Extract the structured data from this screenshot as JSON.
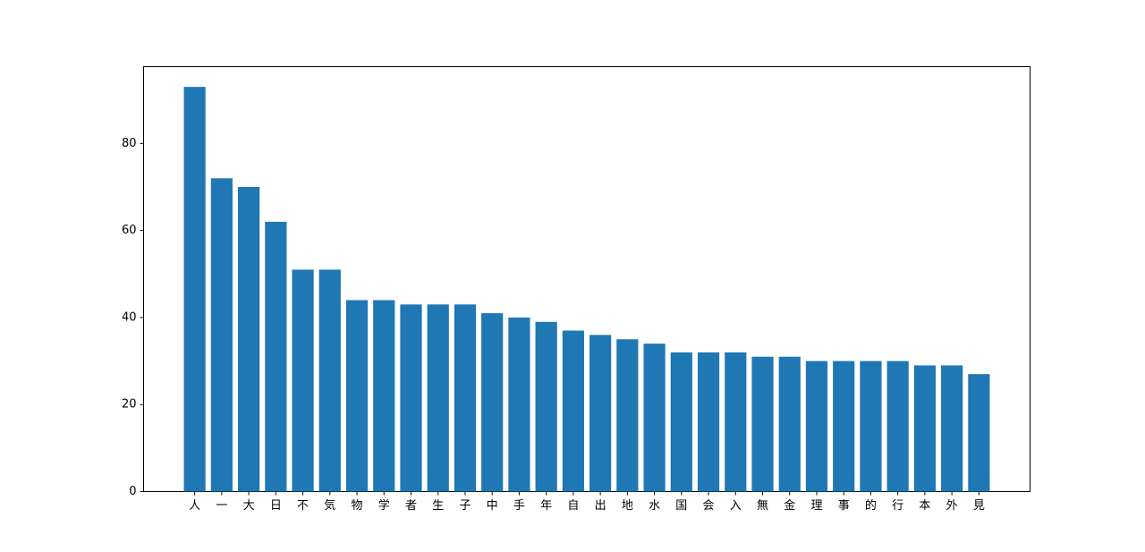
{
  "chart_data": {
    "type": "bar",
    "categories": [
      "人",
      "一",
      "大",
      "日",
      "不",
      "気",
      "物",
      "学",
      "者",
      "生",
      "子",
      "中",
      "手",
      "年",
      "自",
      "出",
      "地",
      "水",
      "国",
      "会",
      "入",
      "無",
      "金",
      "理",
      "事",
      "的",
      "行",
      "本",
      "外",
      "見"
    ],
    "values": [
      93,
      72,
      70,
      62,
      51,
      51,
      44,
      44,
      43,
      43,
      43,
      41,
      40,
      39,
      37,
      36,
      35,
      34,
      32,
      32,
      32,
      31,
      31,
      30,
      30,
      30,
      30,
      29,
      29,
      27
    ],
    "color": "#1f77b4",
    "ylim": [
      0,
      97.65
    ],
    "yticks": [
      0,
      20,
      40,
      60,
      80
    ],
    "grid": false
  }
}
